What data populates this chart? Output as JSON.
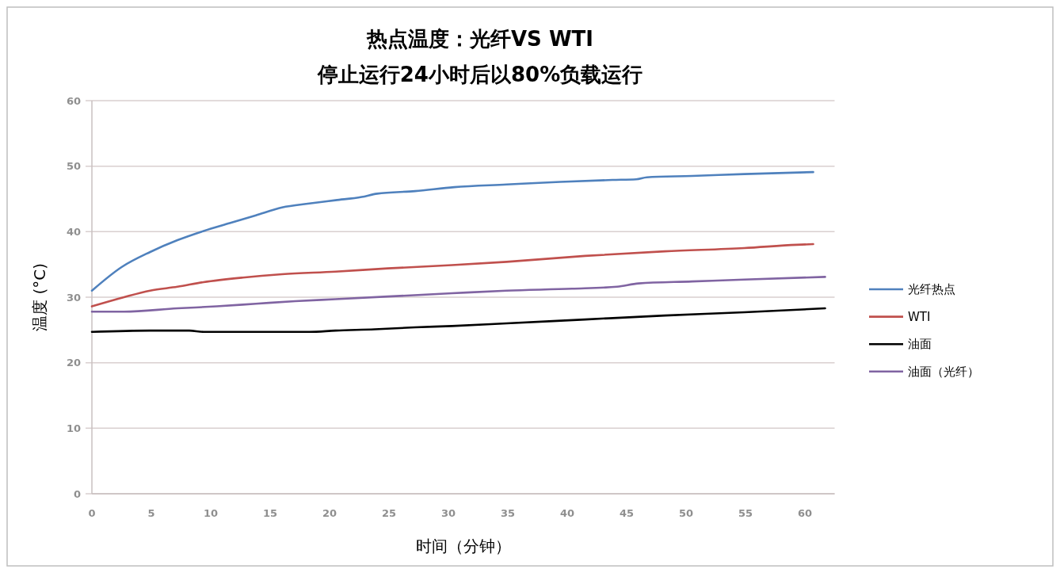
{
  "chart_data": {
    "type": "line",
    "title": "热点温度：光纤VS WTI",
    "subtitle": "停止运行24小时后以80%负载运行",
    "xlabel": "时间（分钟）",
    "ylabel": "温度 (°C)",
    "xlim": [
      0,
      62.5
    ],
    "xticks": [
      0,
      5,
      10,
      15,
      20,
      25,
      30,
      35,
      40,
      45,
      50,
      55,
      60
    ],
    "ylim": [
      0,
      60
    ],
    "yticks": [
      0,
      10,
      20,
      30,
      40,
      50,
      60
    ],
    "grid": "y",
    "legend": "right",
    "series": [
      {
        "name": "光纤热点",
        "color": "#4f81bd",
        "x": [
          0,
          2.5,
          4.9,
          7.2,
          9.4,
          11.6,
          13.8,
          16,
          18.3,
          20.5,
          22.7,
          24,
          27.2,
          30.5,
          34.9,
          39.4,
          43.8,
          45.8,
          46.7,
          50.5,
          54.9,
          60.7
        ],
        "values": [
          31.0,
          34.6,
          36.9,
          38.7,
          40.1,
          41.3,
          42.5,
          43.7,
          44.3,
          44.8,
          45.3,
          45.8,
          46.2,
          46.8,
          47.2,
          47.6,
          47.9,
          48.0,
          48.3,
          48.5,
          48.8,
          49.1
        ]
      },
      {
        "name": "WTI",
        "color": "#c0504d",
        "x": [
          0,
          2.7,
          4.9,
          7.2,
          9.4,
          12.7,
          16,
          20.5,
          24.9,
          30.3,
          34.9,
          41.5,
          48.2,
          54.9,
          59.3,
          60.7
        ],
        "values": [
          28.6,
          30.0,
          31.0,
          31.6,
          32.3,
          33.0,
          33.5,
          33.9,
          34.4,
          34.9,
          35.4,
          36.3,
          37.0,
          37.5,
          38.0,
          38.1
        ]
      },
      {
        "name": "油面",
        "color": "#000000",
        "x": [
          0,
          4.9,
          8.2,
          9.4,
          18.3,
          20.5,
          23.8,
          27.2,
          30.3,
          34.9,
          41.5,
          48.2,
          54.9,
          61.7
        ],
        "values": [
          24.7,
          24.9,
          24.9,
          24.7,
          24.7,
          24.9,
          25.1,
          25.4,
          25.6,
          26.0,
          26.6,
          27.2,
          27.7,
          28.3
        ]
      },
      {
        "name": "油面（光纤）",
        "color": "#8064a2",
        "x": [
          0,
          2.7,
          7.2,
          10.5,
          13.8,
          17.1,
          20.5,
          24.9,
          30.3,
          34.9,
          40.4,
          44.2,
          46,
          50.5,
          54.9,
          61.7
        ],
        "values": [
          27.8,
          27.8,
          28.3,
          28.6,
          29.0,
          29.4,
          29.7,
          30.1,
          30.6,
          31.0,
          31.3,
          31.6,
          32.1,
          32.4,
          32.7,
          33.1
        ]
      }
    ]
  }
}
